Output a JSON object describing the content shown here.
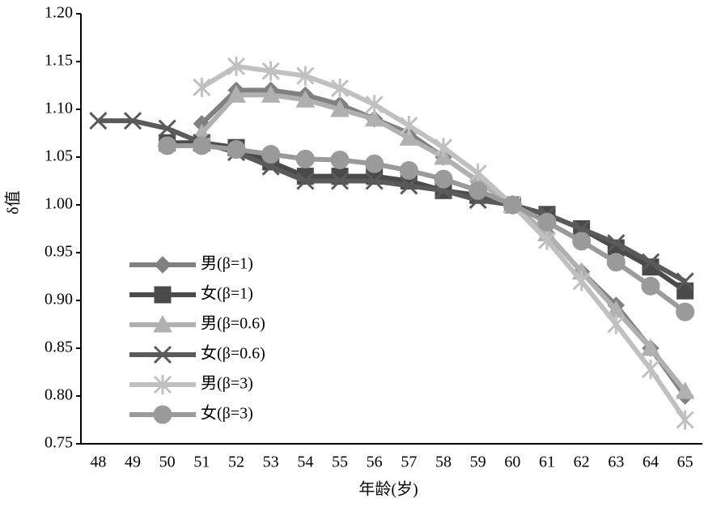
{
  "chart_data": {
    "type": "line",
    "x_label": "年龄(岁)",
    "y_label": "δ值",
    "categories": [
      "48",
      "49",
      "50",
      "51",
      "52",
      "53",
      "54",
      "55",
      "56",
      "57",
      "58",
      "59",
      "60",
      "61",
      "62",
      "63",
      "64",
      "65"
    ],
    "ylim": [
      0.75,
      1.2
    ],
    "yticks": [
      0.75,
      {
        "value": 0.8,
        "label": "0.80"
      },
      0.85,
      {
        "value": 0.9,
        "label": "0.90"
      },
      0.95,
      {
        "value": 1.0,
        "label": "1.00"
      },
      1.05,
      {
        "value": 1.1,
        "label": "1.10"
      },
      1.15,
      {
        "value": 1.2,
        "label": "1.20"
      }
    ],
    "grid": false,
    "legend": "lower-left",
    "series": [
      {
        "name": "男(β=1)",
        "color": "#808080",
        "marker": "diamond",
        "values": [
          null,
          null,
          null,
          1.085,
          1.12,
          1.12,
          1.115,
          1.105,
          1.09,
          1.075,
          1.05,
          1.025,
          1.0,
          0.97,
          0.93,
          0.895,
          0.85,
          0.8
        ]
      },
      {
        "name": "女(β=1)",
        "color": "#4a4a4a",
        "marker": "square",
        "values": [
          null,
          null,
          1.065,
          1.065,
          1.06,
          1.045,
          1.03,
          1.03,
          1.03,
          1.025,
          1.015,
          1.01,
          1.0,
          0.99,
          0.975,
          0.955,
          0.935,
          0.91
        ]
      },
      {
        "name": "男(β=0.6)",
        "color": "#b0b0b0",
        "marker": "triangle",
        "values": [
          null,
          null,
          null,
          1.075,
          1.115,
          1.115,
          1.11,
          1.1,
          1.09,
          1.07,
          1.05,
          1.025,
          1.0,
          0.97,
          0.93,
          0.89,
          0.85,
          0.805
        ]
      },
      {
        "name": "女(β=0.6)",
        "color": "#5a5a5a",
        "marker": "x",
        "values": [
          1.088,
          1.088,
          1.08,
          1.065,
          1.055,
          1.04,
          1.025,
          1.025,
          1.025,
          1.02,
          1.015,
          1.005,
          1.0,
          0.99,
          0.975,
          0.96,
          0.94,
          0.92
        ]
      },
      {
        "name": "男(β=3)",
        "color": "#c0c0c0",
        "marker": "star",
        "values": [
          null,
          null,
          null,
          1.123,
          1.145,
          1.14,
          1.135,
          1.122,
          1.105,
          1.083,
          1.06,
          1.033,
          1.0,
          0.963,
          0.92,
          0.875,
          0.828,
          0.775
        ]
      },
      {
        "name": "女(β=3)",
        "color": "#9a9a9a",
        "marker": "circle",
        "values": [
          null,
          null,
          1.062,
          1.062,
          1.058,
          1.053,
          1.048,
          1.047,
          1.043,
          1.036,
          1.027,
          1.015,
          1.0,
          0.982,
          0.962,
          0.94,
          0.915,
          0.888
        ]
      }
    ]
  }
}
